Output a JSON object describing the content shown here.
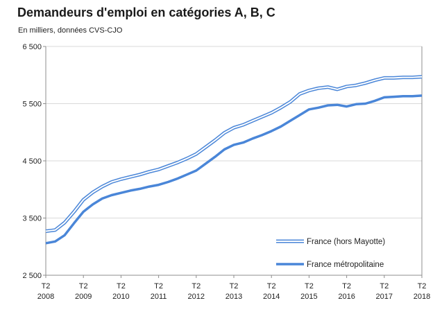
{
  "chart_data": {
    "type": "line",
    "title": "Demandeurs d'emploi en catégories A, B, C",
    "subtitle": "En milliers, données CVS-CJO",
    "xlabel": "",
    "ylabel": "",
    "ylim": [
      2500,
      6500
    ],
    "yticks": [
      {
        "value": 2500,
        "label": "2 500"
      },
      {
        "value": 3500,
        "label": "3 500"
      },
      {
        "value": 4500,
        "label": "4 500"
      },
      {
        "value": 5500,
        "label": "5 500"
      },
      {
        "value": 6500,
        "label": "6 500"
      }
    ],
    "xlim": [
      0,
      40
    ],
    "xticks": [
      {
        "index": 0,
        "label": "T2",
        "year": "2008"
      },
      {
        "index": 4,
        "label": "T2",
        "year": "2009"
      },
      {
        "index": 8,
        "label": "T2",
        "year": "2010"
      },
      {
        "index": 12,
        "label": "T2",
        "year": "2011"
      },
      {
        "index": 16,
        "label": "T2",
        "year": "2012"
      },
      {
        "index": 20,
        "label": "T2",
        "year": "2013"
      },
      {
        "index": 24,
        "label": "T2",
        "year": "2014"
      },
      {
        "index": 28,
        "label": "T2",
        "year": "2015"
      },
      {
        "index": 32,
        "label": "T2",
        "year": "2016"
      },
      {
        "index": 36,
        "label": "T2",
        "year": "2017"
      },
      {
        "index": 40,
        "label": "T2",
        "year": "2018"
      }
    ],
    "grid": "horizontal",
    "legend_position": "bottom-right",
    "series": [
      {
        "name": "France (hors Mayotte)",
        "style": "double",
        "color": "#4a86d8",
        "values": [
          3270,
          3290,
          3420,
          3610,
          3820,
          3950,
          4050,
          4130,
          4180,
          4220,
          4260,
          4310,
          4350,
          4410,
          4470,
          4540,
          4620,
          4740,
          4860,
          4990,
          5080,
          5130,
          5200,
          5270,
          5340,
          5430,
          5530,
          5670,
          5730,
          5770,
          5790,
          5750,
          5800,
          5820,
          5860,
          5910,
          5950,
          5950,
          5960,
          5960,
          5970
        ]
      },
      {
        "name": "France métropolitaine",
        "style": "solid",
        "color": "#4a86d8",
        "values": [
          3060,
          3090,
          3200,
          3410,
          3610,
          3740,
          3840,
          3900,
          3940,
          3980,
          4010,
          4050,
          4080,
          4130,
          4190,
          4260,
          4330,
          4450,
          4570,
          4700,
          4780,
          4820,
          4890,
          4950,
          5020,
          5100,
          5200,
          5300,
          5400,
          5430,
          5470,
          5480,
          5450,
          5490,
          5500,
          5550,
          5610,
          5620,
          5630,
          5630,
          5640
        ]
      }
    ]
  }
}
